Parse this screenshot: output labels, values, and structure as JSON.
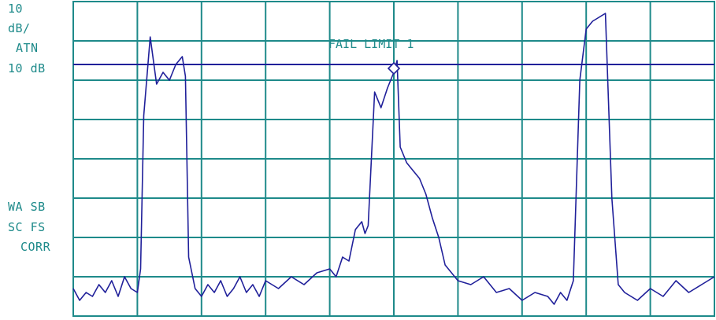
{
  "left_labels": {
    "scale_value": "10",
    "scale_unit": "dB/",
    "atn_label": "ATN",
    "atn_value": "10 dB",
    "wa_sb": "WA SB",
    "sc_fs": "SC FS",
    "corr": "CORR"
  },
  "colors": {
    "grid": "#1e8a8a",
    "trace": "#20209a",
    "limit_line": "#20209a",
    "text": "#1e8a8a",
    "background": "#ffffff"
  },
  "chart_data": {
    "type": "line",
    "title": "FAIL LIMIT 1",
    "xlabel": "",
    "ylabel": "",
    "grid": true,
    "grid_divisions": {
      "x": 10,
      "y": 8
    },
    "xlim": [
      0,
      10
    ],
    "ylim": [
      0,
      8
    ],
    "limit_line_y": 6.4,
    "marker": {
      "x": 5.0,
      "y": 6.3,
      "shape": "diamond"
    },
    "series": [
      {
        "x": [
          0.0,
          0.1,
          0.2,
          0.3,
          0.4,
          0.5,
          0.6,
          0.7,
          0.8,
          0.9,
          1.0,
          1.05,
          1.1,
          1.15,
          1.2,
          1.3,
          1.4,
          1.5,
          1.6,
          1.7,
          1.75,
          1.8,
          1.9,
          2.0,
          2.1,
          2.2,
          2.3,
          2.4,
          2.5,
          2.6,
          2.7,
          2.8,
          2.9,
          3.0,
          3.2,
          3.4,
          3.6,
          3.8,
          4.0,
          4.1,
          4.2,
          4.3,
          4.4,
          4.5,
          4.55,
          4.6,
          4.7,
          4.8,
          4.9,
          5.0,
          5.05,
          5.1,
          5.2,
          5.3,
          5.4,
          5.5,
          5.6,
          5.7,
          5.8,
          6.0,
          6.2,
          6.4,
          6.6,
          6.8,
          7.0,
          7.2,
          7.4,
          7.5,
          7.6,
          7.7,
          7.8,
          7.9,
          8.0,
          8.1,
          8.2,
          8.3,
          8.4,
          8.5,
          8.6,
          8.8,
          9.0,
          9.2,
          9.4,
          9.6,
          9.8,
          10.0
        ],
        "y": [
          0.7,
          0.4,
          0.6,
          0.5,
          0.8,
          0.6,
          0.9,
          0.5,
          1.0,
          0.7,
          0.6,
          1.2,
          5.1,
          6.1,
          7.1,
          5.9,
          6.2,
          6.0,
          6.4,
          6.6,
          6.1,
          1.5,
          0.7,
          0.5,
          0.8,
          0.6,
          0.9,
          0.5,
          0.7,
          1.0,
          0.6,
          0.8,
          0.5,
          0.9,
          0.7,
          1.0,
          0.8,
          1.1,
          1.2,
          1.0,
          1.5,
          1.4,
          2.2,
          2.4,
          2.1,
          2.3,
          5.7,
          5.3,
          5.8,
          6.2,
          6.5,
          4.3,
          3.9,
          3.7,
          3.5,
          3.1,
          2.5,
          2.0,
          1.3,
          0.9,
          0.8,
          1.0,
          0.6,
          0.7,
          0.4,
          0.6,
          0.5,
          0.3,
          0.6,
          0.4,
          0.9,
          6.0,
          7.3,
          7.5,
          7.6,
          7.7,
          3.0,
          0.8,
          0.6,
          0.4,
          0.7,
          0.5,
          0.9,
          0.6,
          0.8,
          1.0
        ]
      }
    ]
  }
}
